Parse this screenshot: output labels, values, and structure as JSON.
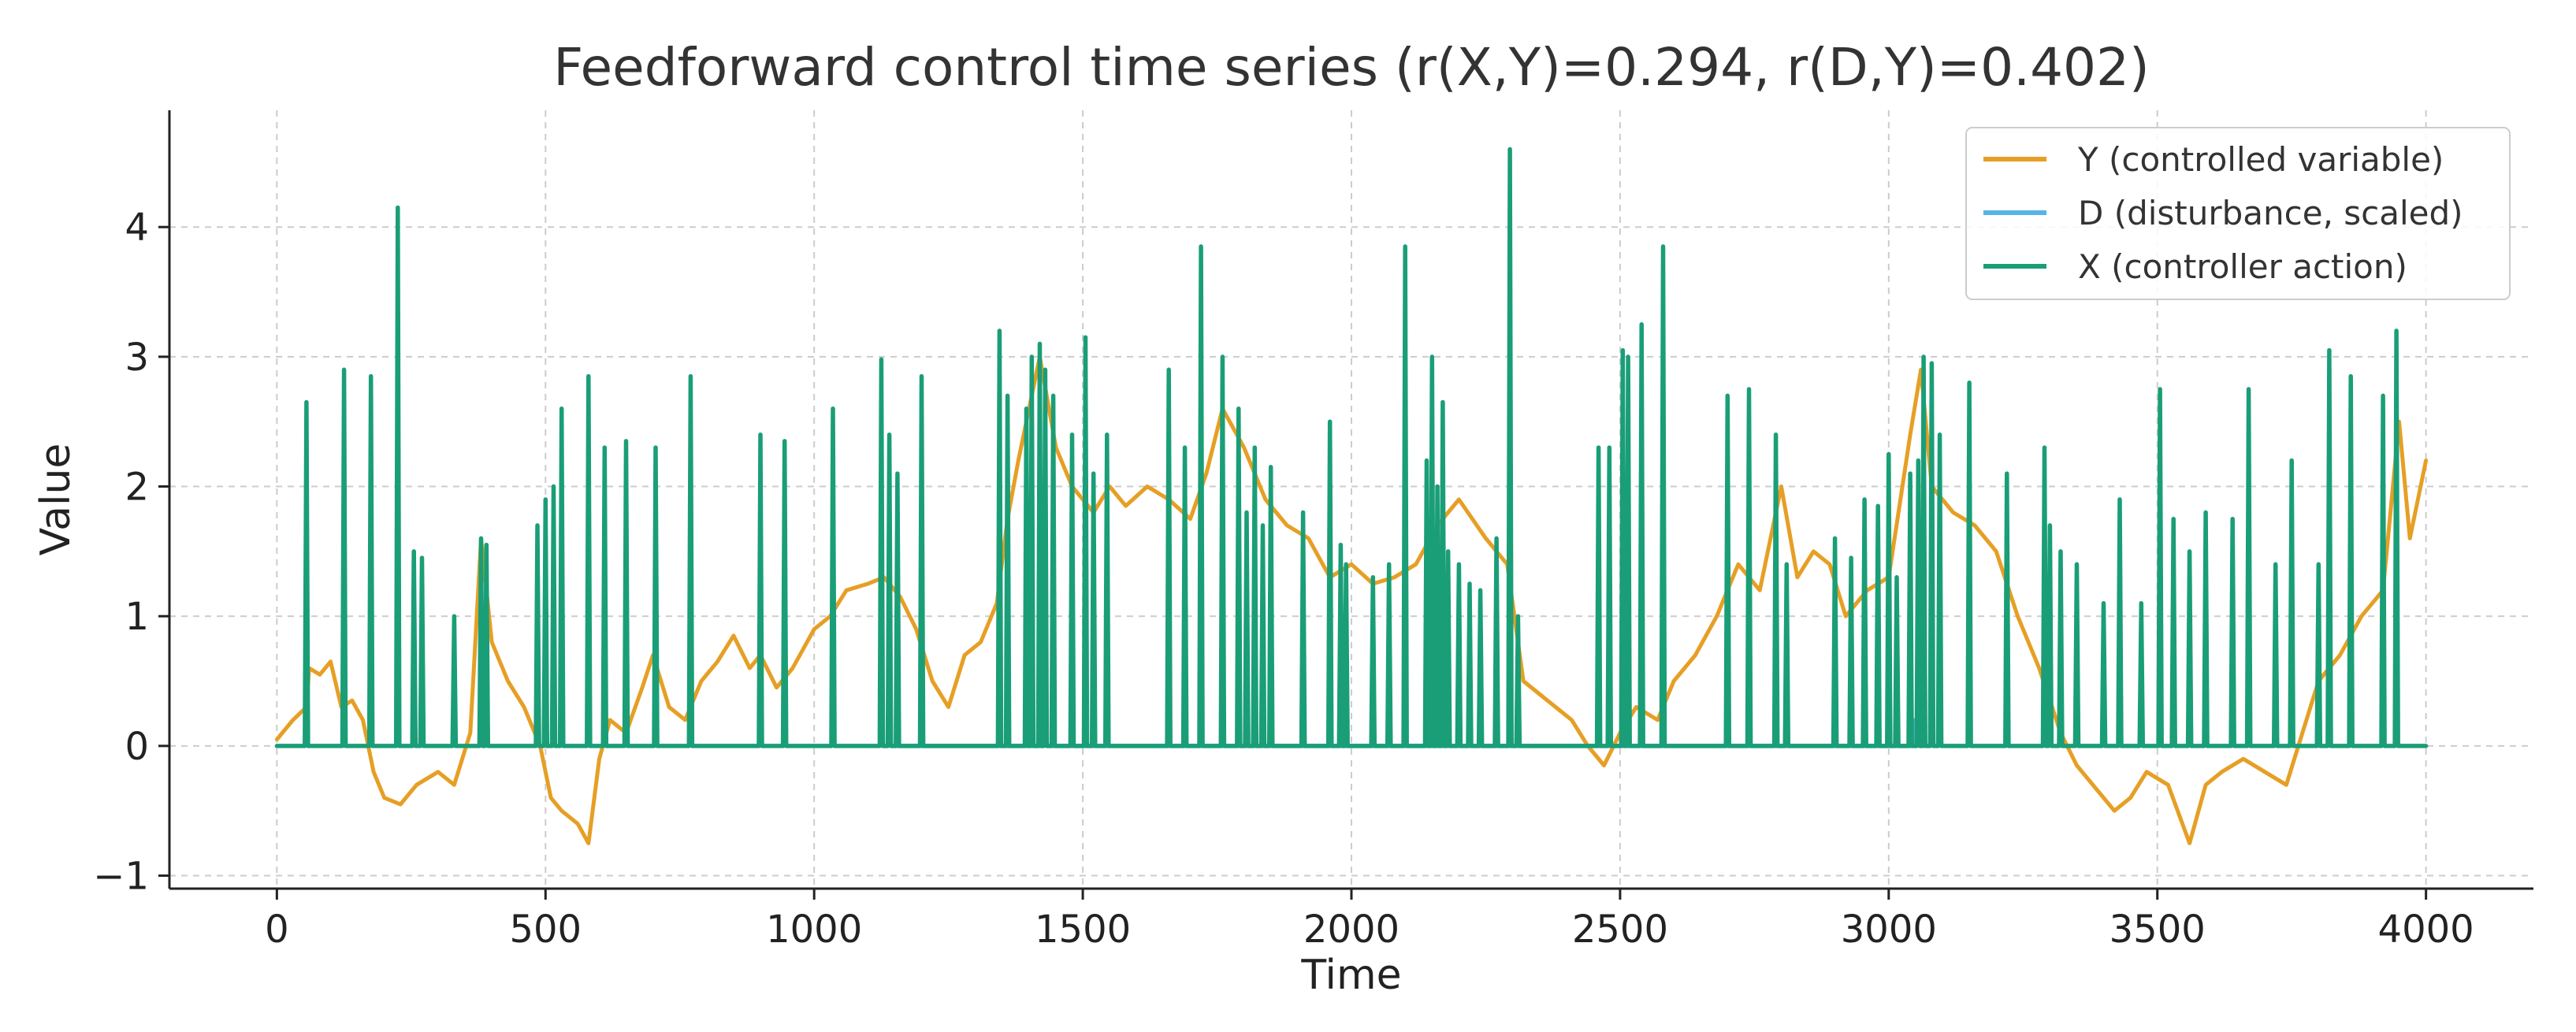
{
  "chart_data": {
    "type": "line",
    "title": "Feedforward control time series (r(X,Y)=0.294, r(D,Y)=0.402)",
    "xlabel": "Time",
    "ylabel": "Value",
    "xlim": [
      -200,
      4200
    ],
    "ylim": [
      -1.1,
      4.9
    ],
    "xticks": [
      0,
      500,
      1000,
      1500,
      2000,
      2500,
      3000,
      3500,
      4000
    ],
    "yticks": [
      -1,
      0,
      1,
      2,
      3,
      4
    ],
    "grid": true,
    "legend_position": "top-right",
    "colors": {
      "Y": "#E69F25",
      "D": "#56B4E9",
      "X": "#1A9E77"
    },
    "series": [
      {
        "key": "Y",
        "name": "Y (controlled variable)",
        "kind": "line",
        "points": [
          [
            0,
            0.05
          ],
          [
            30,
            0.2
          ],
          [
            55,
            0.3
          ],
          [
            60,
            0.6
          ],
          [
            80,
            0.55
          ],
          [
            100,
            0.65
          ],
          [
            120,
            0.3
          ],
          [
            140,
            0.35
          ],
          [
            160,
            0.2
          ],
          [
            180,
            -0.2
          ],
          [
            200,
            -0.4
          ],
          [
            230,
            -0.45
          ],
          [
            260,
            -0.3
          ],
          [
            300,
            -0.2
          ],
          [
            330,
            -0.3
          ],
          [
            360,
            0.1
          ],
          [
            380,
            1.6
          ],
          [
            400,
            0.8
          ],
          [
            430,
            0.5
          ],
          [
            460,
            0.3
          ],
          [
            490,
            0.0
          ],
          [
            510,
            -0.4
          ],
          [
            530,
            -0.5
          ],
          [
            560,
            -0.6
          ],
          [
            580,
            -0.75
          ],
          [
            600,
            -0.1
          ],
          [
            620,
            0.2
          ],
          [
            650,
            0.1
          ],
          [
            680,
            0.45
          ],
          [
            700,
            0.7
          ],
          [
            730,
            0.3
          ],
          [
            760,
            0.2
          ],
          [
            790,
            0.5
          ],
          [
            820,
            0.65
          ],
          [
            850,
            0.85
          ],
          [
            880,
            0.6
          ],
          [
            900,
            0.7
          ],
          [
            930,
            0.45
          ],
          [
            960,
            0.6
          ],
          [
            1000,
            0.9
          ],
          [
            1030,
            1.0
          ],
          [
            1060,
            1.2
          ],
          [
            1100,
            1.25
          ],
          [
            1130,
            1.3
          ],
          [
            1160,
            1.15
          ],
          [
            1190,
            0.9
          ],
          [
            1220,
            0.5
          ],
          [
            1250,
            0.3
          ],
          [
            1280,
            0.7
          ],
          [
            1310,
            0.8
          ],
          [
            1340,
            1.1
          ],
          [
            1360,
            1.75
          ],
          [
            1380,
            2.2
          ],
          [
            1400,
            2.6
          ],
          [
            1420,
            3.0
          ],
          [
            1450,
            2.3
          ],
          [
            1480,
            2.0
          ],
          [
            1500,
            1.9
          ],
          [
            1520,
            1.8
          ],
          [
            1550,
            2.0
          ],
          [
            1580,
            1.85
          ],
          [
            1620,
            2.0
          ],
          [
            1660,
            1.9
          ],
          [
            1700,
            1.75
          ],
          [
            1730,
            2.1
          ],
          [
            1760,
            2.6
          ],
          [
            1800,
            2.3
          ],
          [
            1840,
            1.9
          ],
          [
            1880,
            1.7
          ],
          [
            1920,
            1.6
          ],
          [
            1960,
            1.3
          ],
          [
            2000,
            1.4
          ],
          [
            2040,
            1.25
          ],
          [
            2080,
            1.3
          ],
          [
            2120,
            1.4
          ],
          [
            2160,
            1.7
          ],
          [
            2200,
            1.9
          ],
          [
            2250,
            1.6
          ],
          [
            2290,
            1.4
          ],
          [
            2320,
            0.5
          ],
          [
            2350,
            0.4
          ],
          [
            2380,
            0.3
          ],
          [
            2410,
            0.2
          ],
          [
            2440,
            0.0
          ],
          [
            2470,
            -0.15
          ],
          [
            2500,
            0.1
          ],
          [
            2530,
            0.3
          ],
          [
            2570,
            0.2
          ],
          [
            2600,
            0.5
          ],
          [
            2640,
            0.7
          ],
          [
            2680,
            1.0
          ],
          [
            2720,
            1.4
          ],
          [
            2760,
            1.2
          ],
          [
            2800,
            2.0
          ],
          [
            2830,
            1.3
          ],
          [
            2860,
            1.5
          ],
          [
            2890,
            1.4
          ],
          [
            2920,
            1.0
          ],
          [
            2960,
            1.2
          ],
          [
            3000,
            1.3
          ],
          [
            3040,
            2.4
          ],
          [
            3060,
            2.9
          ],
          [
            3080,
            2.0
          ],
          [
            3120,
            1.8
          ],
          [
            3160,
            1.7
          ],
          [
            3200,
            1.5
          ],
          [
            3240,
            1.0
          ],
          [
            3280,
            0.6
          ],
          [
            3320,
            0.1
          ],
          [
            3350,
            -0.15
          ],
          [
            3380,
            -0.3
          ],
          [
            3420,
            -0.5
          ],
          [
            3450,
            -0.4
          ],
          [
            3480,
            -0.2
          ],
          [
            3520,
            -0.3
          ],
          [
            3560,
            -0.75
          ],
          [
            3590,
            -0.3
          ],
          [
            3620,
            -0.2
          ],
          [
            3660,
            -0.1
          ],
          [
            3700,
            -0.2
          ],
          [
            3740,
            -0.3
          ],
          [
            3770,
            0.1
          ],
          [
            3800,
            0.5
          ],
          [
            3840,
            0.7
          ],
          [
            3880,
            1.0
          ],
          [
            3920,
            1.2
          ],
          [
            3950,
            2.5
          ],
          [
            3970,
            1.6
          ],
          [
            4000,
            2.2
          ]
        ]
      },
      {
        "key": "D",
        "name": "D (disturbance, scaled)",
        "kind": "pulses",
        "baseline": 0,
        "points": [
          [
            1140,
            0.15
          ],
          [
            1430,
            0.15
          ],
          [
            3045,
            0.2
          ],
          [
            3055,
            0.15
          ]
        ]
      },
      {
        "key": "X",
        "name": "X (controller action)",
        "kind": "pulses",
        "baseline": 0,
        "points": [
          [
            55,
            2.65
          ],
          [
            125,
            2.9
          ],
          [
            175,
            2.85
          ],
          [
            225,
            4.15
          ],
          [
            255,
            1.5
          ],
          [
            270,
            1.45
          ],
          [
            330,
            1.0
          ],
          [
            380,
            1.6
          ],
          [
            390,
            1.55
          ],
          [
            485,
            1.7
          ],
          [
            500,
            1.9
          ],
          [
            515,
            2.0
          ],
          [
            530,
            2.6
          ],
          [
            580,
            2.85
          ],
          [
            610,
            2.3
          ],
          [
            650,
            2.35
          ],
          [
            705,
            2.3
          ],
          [
            770,
            2.85
          ],
          [
            900,
            2.4
          ],
          [
            945,
            2.35
          ],
          [
            1035,
            2.6
          ],
          [
            1125,
            2.98
          ],
          [
            1140,
            2.4
          ],
          [
            1155,
            2.1
          ],
          [
            1200,
            2.85
          ],
          [
            1345,
            3.2
          ],
          [
            1360,
            2.7
          ],
          [
            1395,
            2.6
          ],
          [
            1405,
            3.0
          ],
          [
            1420,
            3.1
          ],
          [
            1430,
            2.9
          ],
          [
            1445,
            2.7
          ],
          [
            1480,
            2.4
          ],
          [
            1505,
            3.15
          ],
          [
            1520,
            2.1
          ],
          [
            1545,
            2.4
          ],
          [
            1660,
            2.9
          ],
          [
            1690,
            2.3
          ],
          [
            1720,
            3.85
          ],
          [
            1760,
            3.0
          ],
          [
            1790,
            2.6
          ],
          [
            1805,
            1.8
          ],
          [
            1820,
            2.3
          ],
          [
            1835,
            1.7
          ],
          [
            1850,
            2.15
          ],
          [
            1910,
            1.8
          ],
          [
            1960,
            2.5
          ],
          [
            1980,
            1.55
          ],
          [
            1990,
            1.4
          ],
          [
            2040,
            1.3
          ],
          [
            2070,
            1.4
          ],
          [
            2100,
            3.85
          ],
          [
            2140,
            2.2
          ],
          [
            2150,
            3.0
          ],
          [
            2160,
            2.0
          ],
          [
            2170,
            2.65
          ],
          [
            2180,
            1.5
          ],
          [
            2200,
            1.4
          ],
          [
            2220,
            1.25
          ],
          [
            2240,
            1.2
          ],
          [
            2270,
            1.6
          ],
          [
            2295,
            4.6
          ],
          [
            2310,
            1.0
          ],
          [
            2460,
            2.3
          ],
          [
            2480,
            2.3
          ],
          [
            2505,
            3.05
          ],
          [
            2515,
            3.0
          ],
          [
            2540,
            3.25
          ],
          [
            2580,
            3.85
          ],
          [
            2700,
            2.7
          ],
          [
            2740,
            2.75
          ],
          [
            2790,
            2.4
          ],
          [
            2810,
            1.4
          ],
          [
            2900,
            1.6
          ],
          [
            2930,
            1.45
          ],
          [
            2955,
            1.9
          ],
          [
            2980,
            1.85
          ],
          [
            3000,
            2.25
          ],
          [
            3015,
            1.3
          ],
          [
            3040,
            2.1
          ],
          [
            3055,
            2.2
          ],
          [
            3065,
            3.0
          ],
          [
            3080,
            2.95
          ],
          [
            3095,
            2.4
          ],
          [
            3150,
            2.8
          ],
          [
            3220,
            2.1
          ],
          [
            3290,
            2.3
          ],
          [
            3300,
            1.7
          ],
          [
            3320,
            1.5
          ],
          [
            3350,
            1.4
          ],
          [
            3400,
            1.1
          ],
          [
            3430,
            1.9
          ],
          [
            3470,
            1.1
          ],
          [
            3505,
            2.75
          ],
          [
            3530,
            1.75
          ],
          [
            3560,
            1.5
          ],
          [
            3590,
            1.8
          ],
          [
            3640,
            1.75
          ],
          [
            3670,
            2.75
          ],
          [
            3720,
            1.4
          ],
          [
            3750,
            2.2
          ],
          [
            3800,
            1.4
          ],
          [
            3820,
            3.05
          ],
          [
            3860,
            2.85
          ],
          [
            3920,
            2.7
          ],
          [
            3945,
            3.2
          ]
        ]
      }
    ]
  }
}
